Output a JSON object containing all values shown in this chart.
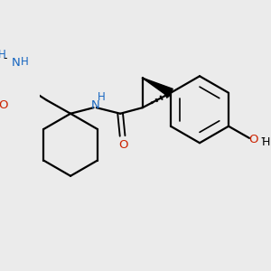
{
  "bg_color": "#ebebeb",
  "bond_color": "#000000",
  "N_color": "#1565C0",
  "O_color": "#CC2200",
  "lw": 1.6,
  "figsize": [
    3.0,
    3.0
  ],
  "dpi": 100,
  "xlim": [
    0,
    300
  ],
  "ylim": [
    0,
    300
  ]
}
